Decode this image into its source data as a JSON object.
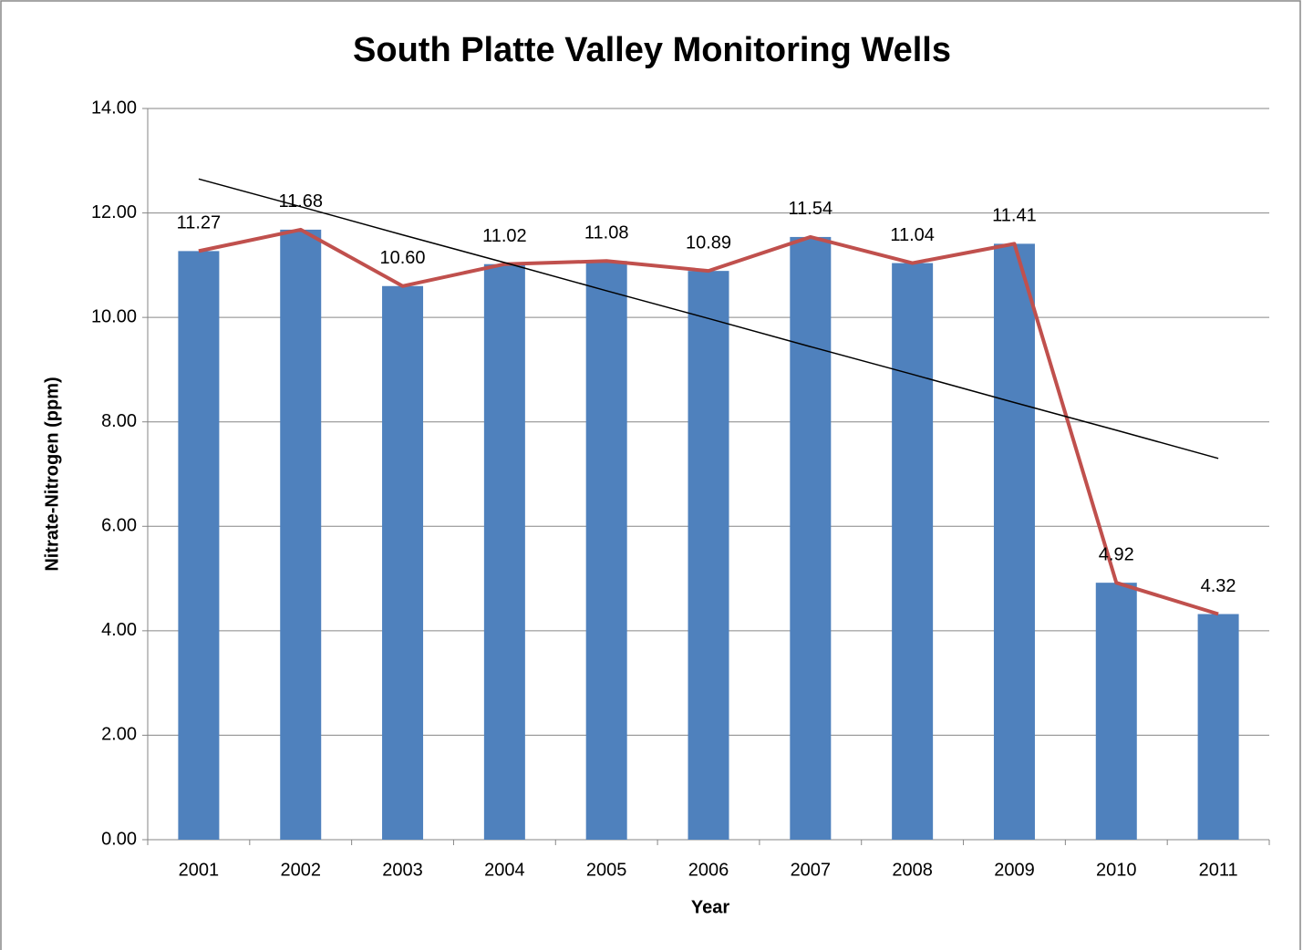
{
  "chart_data": {
    "type": "bar",
    "title": "South Platte Valley Monitoring Wells",
    "x_label": "Year",
    "y_label": "Nitrate-Nitrogen (ppm)",
    "categories": [
      "2001",
      "2002",
      "2003",
      "2004",
      "2005",
      "2006",
      "2007",
      "2008",
      "2009",
      "2010",
      "2011"
    ],
    "series": [
      {
        "type": "bar",
        "color": "#4f81bd",
        "values": [
          11.27,
          11.68,
          10.6,
          11.02,
          11.08,
          10.89,
          11.54,
          11.04,
          11.41,
          4.92,
          4.32
        ],
        "value_labels": [
          "11.27",
          "11.68",
          "10.60",
          "11.02",
          "11.08",
          "10.89",
          "11.54",
          "11.04",
          "11.41",
          "4.92",
          "4.32"
        ]
      },
      {
        "type": "line",
        "color": "#c0504d",
        "values": [
          11.27,
          11.68,
          10.6,
          11.02,
          11.08,
          10.89,
          11.54,
          11.04,
          11.41,
          4.92,
          4.32
        ]
      },
      {
        "type": "line",
        "color": "#000000",
        "values": [
          12.65,
          12.12,
          11.58,
          11.05,
          10.51,
          9.98,
          9.44,
          8.91,
          8.37,
          7.84,
          7.3
        ]
      }
    ],
    "ylim": [
      0,
      14
    ],
    "yticks": [
      {
        "value": 0,
        "label": "0.00"
      },
      {
        "value": 2,
        "label": "2.00"
      },
      {
        "value": 4,
        "label": "4.00"
      },
      {
        "value": 6,
        "label": "6.00"
      },
      {
        "value": 8,
        "label": "8.00"
      },
      {
        "value": 10,
        "label": "10.00"
      },
      {
        "value": 12,
        "label": "12.00"
      },
      {
        "value": 14,
        "label": "14.00"
      }
    ],
    "grid": true
  }
}
